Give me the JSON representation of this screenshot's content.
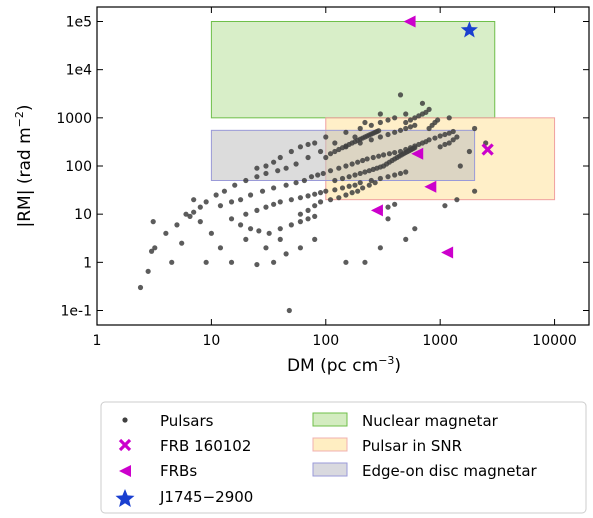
{
  "chart_data": {
    "type": "scatter",
    "title": "",
    "xlabel": "DM (pc cm",
    "xlabel_sup": "−3",
    "xlabel_tail": ")",
    "ylabel": "|RM| (rad m",
    "ylabel_sup": "−2",
    "ylabel_tail": ")",
    "x_scale": "log",
    "y_scale": "log",
    "xlim": [
      1,
      20000
    ],
    "ylim": [
      0.05,
      200000
    ],
    "x_ticks": [
      1,
      10,
      100,
      1000,
      10000
    ],
    "x_tick_labels": [
      "1",
      "10",
      "100",
      "1000",
      "10000"
    ],
    "y_ticks": [
      0.1,
      1,
      10,
      100,
      1000,
      10000,
      100000
    ],
    "y_tick_labels": [
      "1e-1",
      "1",
      "10",
      "100",
      "1000",
      "1e4",
      "1e5"
    ],
    "grid": false,
    "legend_position": "bottom, below plot",
    "regions": [
      {
        "name": "Nuclear magnetar",
        "x": [
          10,
          3000
        ],
        "y": [
          1000,
          100000
        ],
        "fill": "#b8e09a",
        "stroke": "#6fbf4a"
      },
      {
        "name": "Pulsar in SNR",
        "x": [
          100,
          10000
        ],
        "y": [
          20,
          1000
        ],
        "fill": "#ffe29a",
        "stroke": "#f0a0a0"
      },
      {
        "name": "Edge-on disc magnetar",
        "x": [
          10,
          2000
        ],
        "y": [
          50,
          550
        ],
        "fill": "#bfbfbf",
        "stroke": "#9a9ad8"
      }
    ],
    "series": [
      {
        "name": "Pulsars",
        "marker": "dot",
        "color": "#404040",
        "points": [
          [
            2.4,
            0.3
          ],
          [
            2.8,
            0.65
          ],
          [
            3.0,
            1.7
          ],
          [
            3.1,
            7.0
          ],
          [
            3.2,
            2.0
          ],
          [
            4.5,
            1.0
          ],
          [
            5.5,
            2.5
          ],
          [
            6.0,
            10
          ],
          [
            7.0,
            20
          ],
          [
            8.0,
            7
          ],
          [
            9.0,
            1.0
          ],
          [
            10,
            4
          ],
          [
            12,
            2
          ],
          [
            15,
            1
          ],
          [
            20,
            3
          ],
          [
            25,
            0.9
          ],
          [
            30,
            2
          ],
          [
            35,
            1
          ],
          [
            40,
            3
          ],
          [
            45,
            1.5
          ],
          [
            48,
            0.1
          ],
          [
            60,
            2
          ],
          [
            80,
            3
          ],
          [
            150,
            1
          ],
          [
            220,
            1
          ],
          [
            300,
            2
          ],
          [
            500,
            3
          ],
          [
            600,
            5
          ],
          [
            350,
            8
          ],
          [
            1100,
            15
          ],
          [
            1400,
            20
          ],
          [
            2000,
            30
          ],
          [
            1500,
            100
          ],
          [
            1800,
            200
          ],
          [
            2500,
            300
          ],
          [
            2000,
            600
          ],
          [
            1200,
            1000
          ],
          [
            800,
            1500
          ],
          [
            700,
            2000
          ],
          [
            450,
            3000
          ],
          [
            500,
            1200
          ],
          [
            300,
            1200
          ],
          [
            220,
            800
          ],
          [
            180,
            400
          ],
          [
            120,
            300
          ],
          [
            90,
            200
          ],
          [
            70,
            150
          ],
          [
            55,
            110
          ],
          [
            45,
            90
          ],
          [
            38,
            80
          ],
          [
            30,
            70
          ],
          [
            25,
            60
          ],
          [
            20,
            50
          ],
          [
            16,
            40
          ],
          [
            13,
            30
          ],
          [
            11,
            25
          ],
          [
            9,
            18
          ],
          [
            8,
            14
          ],
          [
            7,
            11
          ],
          [
            6.5,
            9
          ],
          [
            5,
            6
          ],
          [
            4,
            4
          ],
          [
            12,
            15
          ],
          [
            15,
            18
          ],
          [
            18,
            20
          ],
          [
            22,
            25
          ],
          [
            28,
            30
          ],
          [
            35,
            35
          ],
          [
            45,
            40
          ],
          [
            55,
            45
          ],
          [
            65,
            50
          ],
          [
            75,
            60
          ],
          [
            85,
            65
          ],
          [
            95,
            70
          ],
          [
            110,
            80
          ],
          [
            130,
            90
          ],
          [
            150,
            100
          ],
          [
            170,
            110
          ],
          [
            190,
            120
          ],
          [
            210,
            130
          ],
          [
            230,
            140
          ],
          [
            260,
            150
          ],
          [
            290,
            160
          ],
          [
            320,
            170
          ],
          [
            360,
            180
          ],
          [
            400,
            190
          ],
          [
            450,
            200
          ],
          [
            500,
            220
          ],
          [
            550,
            240
          ],
          [
            600,
            260
          ],
          [
            650,
            280
          ],
          [
            700,
            300
          ],
          [
            750,
            320
          ],
          [
            800,
            350
          ],
          [
            900,
            380
          ],
          [
            1000,
            420
          ],
          [
            1100,
            450
          ],
          [
            1200,
            480
          ],
          [
            1300,
            520
          ],
          [
            20,
            10
          ],
          [
            25,
            12
          ],
          [
            30,
            14
          ],
          [
            35,
            16
          ],
          [
            40,
            18
          ],
          [
            50,
            20
          ],
          [
            60,
            22
          ],
          [
            70,
            24
          ],
          [
            80,
            26
          ],
          [
            90,
            28
          ],
          [
            100,
            30
          ],
          [
            120,
            32
          ],
          [
            140,
            35
          ],
          [
            160,
            38
          ],
          [
            180,
            40
          ],
          [
            200,
            45
          ],
          [
            250,
            50
          ],
          [
            300,
            55
          ],
          [
            350,
            60
          ],
          [
            400,
            65
          ],
          [
            450,
            70
          ],
          [
            500,
            75
          ],
          [
            100,
            400
          ],
          [
            150,
            500
          ],
          [
            200,
            600
          ],
          [
            250,
            700
          ],
          [
            300,
            800
          ],
          [
            350,
            900
          ],
          [
            400,
            1000
          ],
          [
            150,
            250
          ],
          [
            200,
            300
          ],
          [
            250,
            350
          ],
          [
            300,
            400
          ],
          [
            350,
            450
          ],
          [
            400,
            500
          ],
          [
            450,
            550
          ],
          [
            500,
            600
          ],
          [
            550,
            650
          ],
          [
            600,
            700
          ],
          [
            40,
            150
          ],
          [
            50,
            200
          ],
          [
            60,
            250
          ],
          [
            70,
            280
          ],
          [
            80,
            300
          ],
          [
            30,
            100
          ],
          [
            25,
            90
          ],
          [
            35,
            120
          ],
          [
            60,
            10
          ],
          [
            70,
            12
          ],
          [
            80,
            15
          ],
          [
            90,
            18
          ],
          [
            110,
            20
          ],
          [
            130,
            22
          ],
          [
            150,
            25
          ],
          [
            170,
            28
          ],
          [
            190,
            30
          ],
          [
            210,
            35
          ],
          [
            240,
            40
          ],
          [
            270,
            45
          ],
          [
            300,
            12
          ],
          [
            350,
            14
          ],
          [
            400,
            16
          ],
          [
            15,
            8
          ],
          [
            18,
            6
          ],
          [
            22,
            5
          ],
          [
            26,
            4.5
          ],
          [
            32,
            4
          ],
          [
            40,
            5
          ],
          [
            50,
            6
          ],
          [
            60,
            7
          ],
          [
            70,
            8
          ],
          [
            80,
            9
          ],
          [
            120,
            50
          ],
          [
            140,
            55
          ],
          [
            160,
            60
          ],
          [
            180,
            65
          ],
          [
            200,
            70
          ],
          [
            220,
            75
          ],
          [
            240,
            80
          ],
          [
            260,
            85
          ],
          [
            280,
            90
          ],
          [
            300,
            95
          ],
          [
            320,
            100
          ],
          [
            340,
            110
          ],
          [
            360,
            120
          ],
          [
            380,
            130
          ],
          [
            400,
            140
          ],
          [
            420,
            150
          ],
          [
            440,
            160
          ],
          [
            460,
            170
          ],
          [
            480,
            180
          ],
          [
            500,
            190
          ],
          [
            520,
            200
          ],
          [
            540,
            210
          ],
          [
            560,
            220
          ],
          [
            580,
            230
          ],
          [
            600,
            240
          ],
          [
            100,
            150
          ],
          [
            110,
            180
          ],
          [
            120,
            200
          ],
          [
            130,
            220
          ],
          [
            140,
            240
          ],
          [
            150,
            260
          ],
          [
            160,
            280
          ],
          [
            170,
            300
          ],
          [
            180,
            320
          ],
          [
            190,
            340
          ],
          [
            200,
            360
          ],
          [
            210,
            380
          ],
          [
            220,
            400
          ],
          [
            230,
            420
          ],
          [
            240,
            440
          ],
          [
            250,
            460
          ],
          [
            260,
            480
          ],
          [
            270,
            500
          ],
          [
            280,
            520
          ],
          [
            290,
            540
          ],
          [
            500,
            800
          ],
          [
            550,
            900
          ],
          [
            600,
            1000
          ],
          [
            650,
            1100
          ],
          [
            700,
            1200
          ],
          [
            750,
            1300
          ],
          [
            800,
            600
          ],
          [
            850,
            700
          ],
          [
            900,
            800
          ],
          [
            950,
            900
          ],
          [
            1000,
            250
          ],
          [
            1100,
            280
          ],
          [
            1200,
            300
          ],
          [
            1300,
            350
          ],
          [
            1400,
            400
          ]
        ]
      },
      {
        "name": "FRB 160102",
        "marker": "x",
        "color": "#cc00cc",
        "points": [
          [
            2600,
            220
          ]
        ]
      },
      {
        "name": "FRBs",
        "marker": "triangle-left",
        "color": "#cc00cc",
        "points": [
          [
            540,
            100000
          ],
          [
            630,
            180
          ],
          [
            820,
            37
          ],
          [
            280,
            12
          ],
          [
            1150,
            1.6
          ]
        ]
      },
      {
        "name": "J1745−2900",
        "marker": "star",
        "color": "#1a3fd0",
        "points": [
          [
            1800,
            66000
          ]
        ]
      }
    ],
    "legend": {
      "left_column": [
        "Pulsars",
        "FRB 160102",
        "FRBs",
        "J1745−2900"
      ],
      "right_column": [
        "Nuclear magnetar",
        "Pulsar in SNR",
        "Edge-on disc magnetar"
      ]
    }
  }
}
